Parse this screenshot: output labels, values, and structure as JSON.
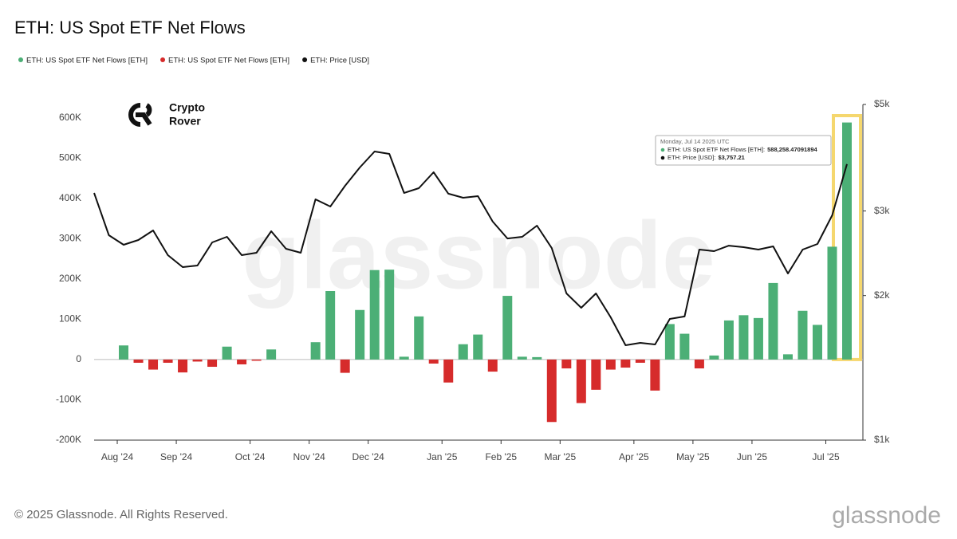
{
  "chart_data": {
    "type": "bar",
    "title": "ETH: US Spot ETF Net Flows",
    "categories": [
      null,
      null,
      "Aug '24",
      null,
      null,
      null,
      "Sep '24",
      null,
      null,
      null,
      null,
      "Oct '24",
      null,
      null,
      null,
      "Nov '24",
      null,
      null,
      null,
      "Dec '24",
      null,
      null,
      null,
      null,
      "Jan '25",
      null,
      null,
      null,
      "Feb '25",
      null,
      null,
      null,
      "Mar '25",
      null,
      null,
      null,
      null,
      "Apr '25",
      null,
      null,
      null,
      "May '25",
      null,
      null,
      null,
      "Jun '25",
      null,
      null,
      null,
      null,
      "Jul '25",
      null
    ],
    "series": [
      {
        "name": "ETH: US Spot ETF Net Flows [ETH]",
        "color": "#4caf76",
        "values": [
          null,
          null,
          35000,
          null,
          null,
          null,
          null,
          null,
          null,
          32000,
          null,
          null,
          25000,
          null,
          null,
          43000,
          170000,
          null,
          123000,
          222000,
          223000,
          7000,
          107000,
          null,
          null,
          38000,
          62000,
          null,
          158000,
          7000,
          6000,
          null,
          null,
          null,
          null,
          null,
          null,
          null,
          null,
          88000,
          64000,
          null,
          10000,
          97000,
          110000,
          103000,
          190000,
          13000,
          121000,
          86000,
          280000,
          588258.47091894
        ]
      },
      {
        "name": "ETH: US Spot ETF Net Flows [ETH]",
        "color": "#d62b2b",
        "values": [
          null,
          null,
          null,
          -8000,
          -25000,
          -8000,
          -32000,
          -5000,
          -18000,
          null,
          -12000,
          -3000,
          null,
          null,
          null,
          null,
          null,
          -33000,
          null,
          null,
          null,
          null,
          null,
          -10000,
          -57000,
          null,
          null,
          -30000,
          null,
          null,
          null,
          -155000,
          -22000,
          -108000,
          -75000,
          -25000,
          -20000,
          -8000,
          -77000,
          null,
          null,
          -22000,
          null,
          null,
          null,
          null,
          null,
          null,
          null,
          null,
          null,
          null
        ]
      },
      {
        "name": "ETH: Price [USD]",
        "color": "#111111",
        "axis": "y2",
        "type": "line",
        "values": [
          3271,
          2671,
          2551,
          2611,
          2733,
          2428,
          2292,
          2310,
          2581,
          2651,
          2428,
          2456,
          2723,
          2503,
          2456,
          3172,
          3065,
          3385,
          3697,
          3990,
          3945,
          3271,
          3347,
          3613,
          3260,
          3197,
          3221,
          2851,
          2630,
          2651,
          2797,
          2512,
          2021,
          1886,
          2021,
          1802,
          1576,
          1594,
          1582,
          1788,
          1809,
          2493,
          2474,
          2541,
          2522,
          2493,
          2532,
          2223,
          2493,
          2561,
          2939,
          3757.21
        ]
      }
    ],
    "ylim": [
      -200000,
      633000
    ],
    "yticks": [
      {
        "value": -200000,
        "label": "-200K"
      },
      {
        "value": -100000,
        "label": "-100K"
      },
      0,
      {
        "value": 100000,
        "label": "100K"
      },
      {
        "value": 200000,
        "label": "200K"
      },
      {
        "value": 300000,
        "label": "300K"
      },
      {
        "value": 400000,
        "label": "400K"
      },
      {
        "value": 500000,
        "label": "500K"
      },
      {
        "value": 600000,
        "label": "600K"
      }
    ],
    "y2lim": [
      1000,
      5000
    ],
    "y2ticks": [
      {
        "value": 1000,
        "label": "$1k"
      },
      {
        "value": 2000,
        "label": "$2k"
      },
      {
        "value": 3000,
        "label": "$3k"
      },
      {
        "value": 5000,
        "label": "$5k"
      }
    ],
    "y2log": true,
    "grid": false,
    "legend": "top-left",
    "highlight_color": "#f5d76e",
    "tooltip": {
      "date": "Monday, Jul 14 2025 UTC",
      "rows": [
        {
          "label": "ETH: US Spot ETF Net Flows [ETH]:",
          "value_label": "588,258.47091894"
        },
        {
          "label": "ETH: Price [USD]:",
          "value_label": "$3,757.21"
        }
      ]
    },
    "watermark": "glassnode",
    "logo": [
      "Crypto",
      "Rover"
    ],
    "footer": "© 2025 Glassnode. All Rights Reserved.",
    "brand": "glassnode"
  }
}
